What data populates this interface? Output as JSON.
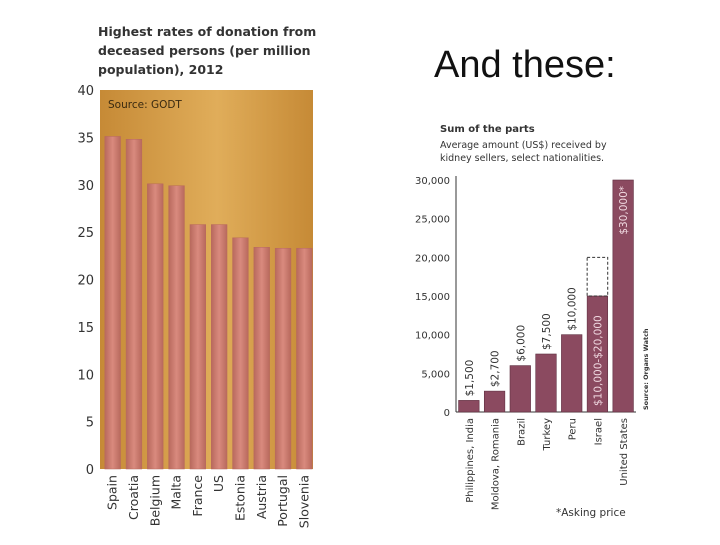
{
  "slide": {
    "title": "And these:"
  },
  "chart_data": [
    {
      "type": "bar",
      "title": "Highest rates of donation from deceased persons (per million population), 2012",
      "title_lines": [
        "Highest rates of donation from",
        "deceased persons (per million",
        "population), 2012"
      ],
      "source": "Source: GODT",
      "categories": [
        "Spain",
        "Croatia",
        "Belgium",
        "Malta",
        "France",
        "US",
        "Estonia",
        "Austria",
        "Portugal",
        "Slovenia"
      ],
      "values": [
        35.1,
        34.8,
        30.1,
        29.9,
        25.8,
        25.8,
        24.4,
        23.4,
        23.3,
        23.3
      ],
      "ylim": [
        0,
        40
      ],
      "yticks": [
        0,
        5,
        10,
        15,
        20,
        25,
        30,
        35,
        40
      ],
      "xlabel": "",
      "ylabel": "",
      "colors": {
        "bar": "#d98a7e",
        "bar_edge": "#b8695d",
        "background": "#c68a36",
        "background_light": "#e0ad5a"
      }
    },
    {
      "type": "bar",
      "title": "Sum of the parts",
      "subtitle_lines": [
        "Average amount (US$) received by",
        "kidney sellers, select nationalities."
      ],
      "categories": [
        "Philippines, India",
        "Moldova, Romania",
        "Brazil",
        "Turkey",
        "Peru",
        "Israel",
        "United States"
      ],
      "values": [
        1500,
        2700,
        6000,
        7500,
        10000,
        15000,
        30000
      ],
      "value_labels": [
        "$1,500",
        "$2,700",
        "$6,000",
        "$7,500",
        "$10,000",
        "$10,000-$20,000",
        "$30,000*"
      ],
      "range_high": {
        "category": "Israel",
        "value": 20000
      },
      "ylim": [
        0,
        30000
      ],
      "yticks": [
        0,
        5000,
        10000,
        15000,
        20000,
        25000,
        30000
      ],
      "ytick_labels": [
        "0",
        "5,000",
        "10,000",
        "15,000",
        "20,000",
        "25,000",
        "30,000"
      ],
      "source": "Source: Organs Watch",
      "footnote": "*Asking price",
      "colors": {
        "bar": "#8b4a60",
        "bar_light": "#a86479"
      }
    }
  ]
}
